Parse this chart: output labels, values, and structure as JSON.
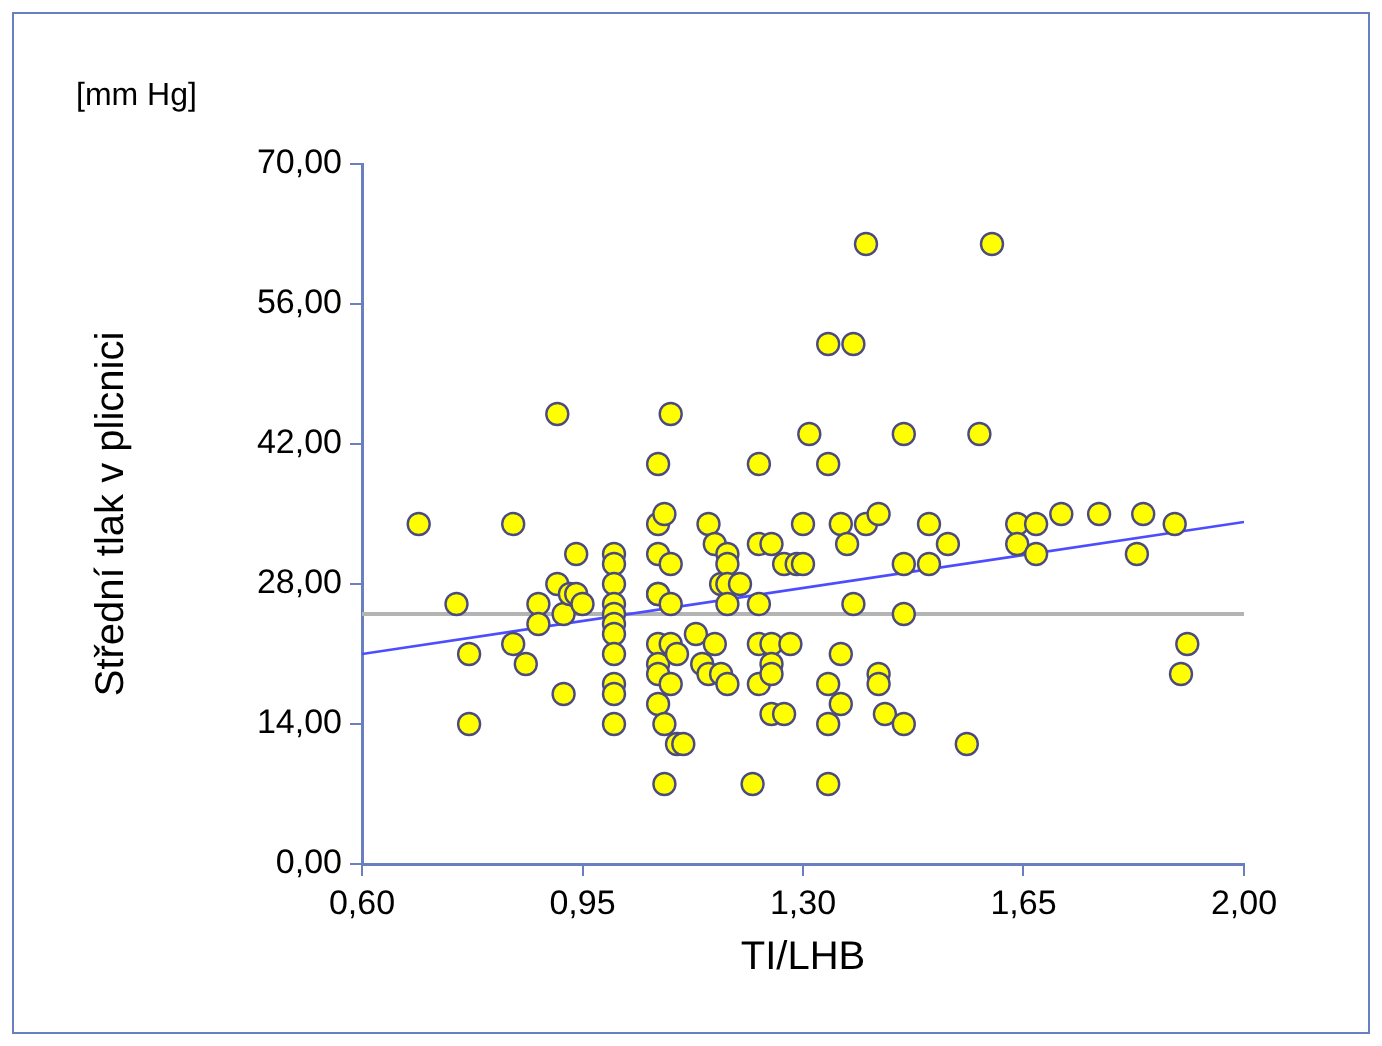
{
  "chart_data": {
    "type": "scatter",
    "xlabel": "TI/LHB",
    "ylabel": "Střední tlak v plicnici",
    "annotations": [
      "[mm Hg]"
    ],
    "xlim": [
      0.6,
      2.0
    ],
    "xticks": [
      {
        "value": 0.6,
        "label": "0,60"
      },
      {
        "value": 0.95,
        "label": "0,95"
      },
      {
        "value": 1.3,
        "label": "1,30"
      },
      {
        "value": 1.65,
        "label": "1,65"
      },
      {
        "value": 2.0,
        "label": "2,00"
      }
    ],
    "ylim": [
      0,
      70
    ],
    "yticks": [
      {
        "value": 0,
        "label": "0,00"
      },
      {
        "value": 14,
        "label": "14,00"
      },
      {
        "value": 28,
        "label": "28,00"
      },
      {
        "value": 42,
        "label": "42,00"
      },
      {
        "value": 56,
        "label": "56,00"
      },
      {
        "value": 70,
        "label": "70,00"
      }
    ],
    "grid": false,
    "legend": false,
    "marker": "circle",
    "ref_lines": [
      {
        "axis": "y",
        "value": 25,
        "color": "#b4b4b4"
      }
    ],
    "series": [
      {
        "color": "#ffff00",
        "x": [
          0.69,
          0.75,
          0.77,
          0.77,
          0.84,
          0.84,
          0.86,
          0.88,
          0.88,
          0.91,
          0.91,
          0.92,
          0.92,
          0.93,
          0.94,
          0.94,
          0.95,
          1.0,
          1.0,
          1.0,
          1.0,
          1.0,
          1.0,
          1.0,
          1.0,
          1.0,
          1.0,
          1.0,
          1.07,
          1.07,
          1.07,
          1.07,
          1.07,
          1.07,
          1.07,
          1.07,
          1.07,
          1.08,
          1.09,
          1.09,
          1.09,
          1.1,
          1.09,
          1.08,
          1.08,
          1.09,
          1.1,
          1.11,
          1.13,
          1.14,
          1.15,
          1.15,
          1.16,
          1.16,
          1.17,
          1.17,
          1.18,
          1.18,
          1.18,
          1.18,
          1.18,
          1.2,
          1.22,
          1.23,
          1.23,
          1.23,
          1.23,
          1.23,
          1.25,
          1.25,
          1.25,
          1.25,
          1.25,
          1.27,
          1.27,
          1.28,
          1.29,
          1.3,
          1.3,
          1.31,
          1.34,
          1.34,
          1.34,
          1.34,
          1.34,
          1.36,
          1.36,
          1.36,
          1.37,
          1.38,
          1.38,
          1.4,
          1.4,
          1.42,
          1.42,
          1.42,
          1.43,
          1.46,
          1.46,
          1.46,
          1.46,
          1.5,
          1.5,
          1.53,
          1.56,
          1.58,
          1.6,
          1.64,
          1.64,
          1.67,
          1.67,
          1.71,
          1.77,
          1.83,
          1.84,
          1.89,
          1.9,
          1.91
        ],
        "values": [
          34,
          26,
          21,
          14,
          34,
          22,
          20,
          26,
          24,
          45,
          28,
          25,
          17,
          27,
          31,
          27,
          26,
          31,
          30,
          28,
          26,
          25,
          24,
          23,
          21,
          18,
          17,
          14,
          31,
          27,
          22,
          20,
          19,
          16,
          40,
          34,
          27,
          35,
          30,
          26,
          22,
          21,
          18,
          14,
          8,
          45,
          12,
          12,
          23,
          20,
          34,
          19,
          32,
          22,
          28,
          19,
          18,
          31,
          30,
          28,
          26,
          28,
          8,
          18,
          40,
          32,
          26,
          22,
          32,
          22,
          20,
          19,
          15,
          15,
          30,
          22,
          30,
          34,
          30,
          43,
          52,
          40,
          18,
          14,
          8,
          34,
          21,
          16,
          32,
          26,
          52,
          34,
          62,
          35,
          19,
          18,
          15,
          25,
          14,
          43,
          30,
          34,
          30,
          32,
          12,
          43,
          62,
          34,
          32,
          34,
          31,
          35,
          35,
          31,
          35,
          34,
          19,
          22
        ]
      },
      {
        "type": "line",
        "color": "#4d4dff",
        "x": [
          0.6,
          2.0
        ],
        "values": [
          21,
          34.2
        ],
        "marker": "none"
      }
    ]
  }
}
